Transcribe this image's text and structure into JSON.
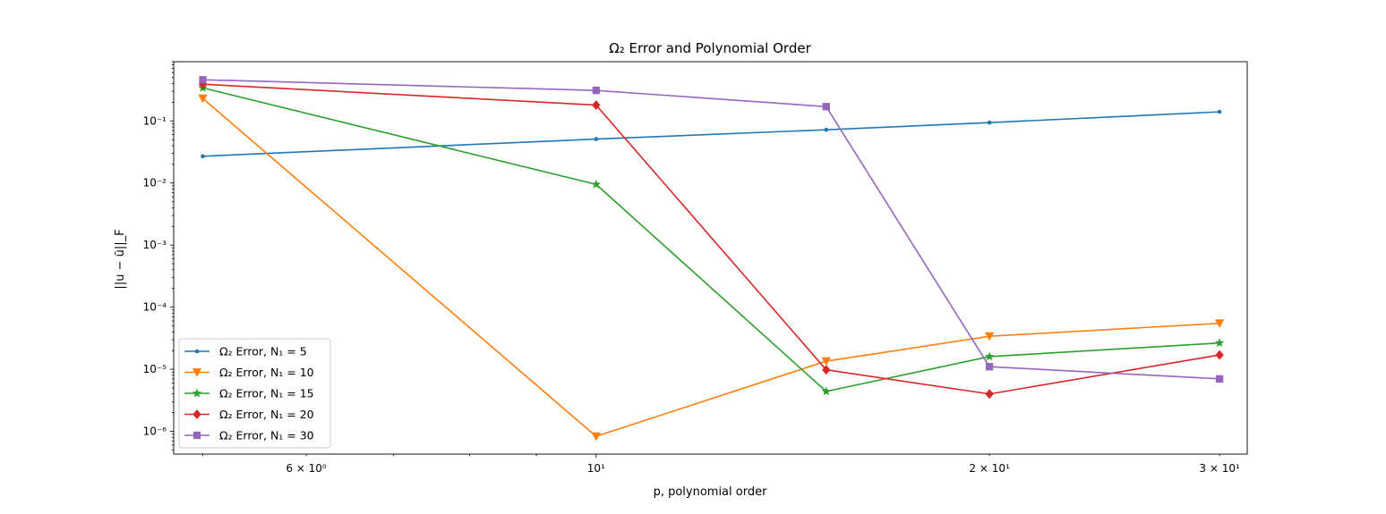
{
  "chart_data": {
    "type": "line",
    "title": "Ω₂ Error and Polynomial Order",
    "xlabel": "p, polynomial order",
    "ylabel": "||u − ũ||_F",
    "xscale": "log",
    "yscale": "log",
    "xlim": [
      4.75,
      31.5
    ],
    "ylim": [
      4.3e-07,
      0.9
    ],
    "x": [
      5,
      10,
      15,
      20,
      30
    ],
    "xticks": [
      {
        "value": 6,
        "label": "6 × 10⁰"
      },
      {
        "value": 10,
        "label": "10¹"
      },
      {
        "value": 20,
        "label": "2 × 10¹"
      },
      {
        "value": 30,
        "label": "3 × 10¹"
      }
    ],
    "yticks": [
      {
        "value": 1e-06,
        "label": "10⁻⁶"
      },
      {
        "value": 1e-05,
        "label": "10⁻⁵"
      },
      {
        "value": 0.0001,
        "label": "10⁻⁴"
      },
      {
        "value": 0.001,
        "label": "10⁻³"
      },
      {
        "value": 0.01,
        "label": "10⁻²"
      },
      {
        "value": 0.1,
        "label": "10⁻¹"
      }
    ],
    "grid": false,
    "legend_position": "lower-left",
    "series": [
      {
        "name": "Ω₂ Error, N₁ = 5",
        "color": "#1f77b4",
        "marker": "circle",
        "values": [
          0.027,
          0.051,
          0.072,
          0.094,
          0.14
        ]
      },
      {
        "name": "Ω₂ Error, N₁ = 10",
        "color": "#ff7f0e",
        "marker": "triangle-down",
        "values": [
          0.23,
          8.3e-07,
          1.35e-05,
          3.4e-05,
          5.5e-05
        ]
      },
      {
        "name": "Ω₂ Error, N₁ = 15",
        "color": "#2ca02c",
        "marker": "star",
        "values": [
          0.34,
          0.0095,
          4.4e-06,
          1.6e-05,
          2.65e-05
        ]
      },
      {
        "name": "Ω₂ Error, N₁ = 20",
        "color": "#d62728",
        "marker": "diamond",
        "values": [
          0.39,
          0.18,
          9.8e-06,
          4e-06,
          1.7e-05
        ]
      },
      {
        "name": "Ω₂ Error, N₁ = 30",
        "color": "#9467bd",
        "marker": "square",
        "values": [
          0.46,
          0.31,
          0.17,
          1.1e-05,
          7e-06
        ]
      }
    ]
  }
}
